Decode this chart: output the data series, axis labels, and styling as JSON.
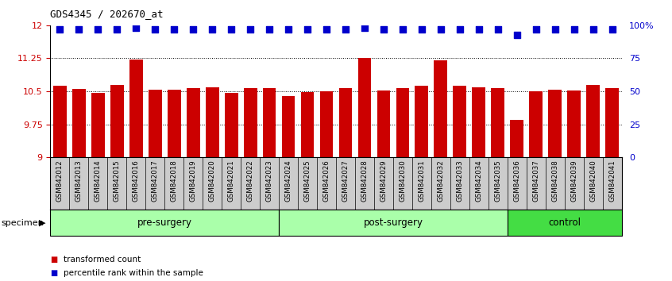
{
  "title": "GDS4345 / 202670_at",
  "samples": [
    "GSM842012",
    "GSM842013",
    "GSM842014",
    "GSM842015",
    "GSM842016",
    "GSM842017",
    "GSM842018",
    "GSM842019",
    "GSM842020",
    "GSM842021",
    "GSM842022",
    "GSM842023",
    "GSM842024",
    "GSM842025",
    "GSM842026",
    "GSM842027",
    "GSM842028",
    "GSM842029",
    "GSM842030",
    "GSM842031",
    "GSM842032",
    "GSM842033",
    "GSM842034",
    "GSM842035",
    "GSM842036",
    "GSM842037",
    "GSM842038",
    "GSM842039",
    "GSM842040",
    "GSM842041"
  ],
  "bar_values": [
    10.62,
    10.55,
    10.46,
    10.65,
    11.22,
    10.53,
    10.54,
    10.57,
    10.6,
    10.47,
    10.57,
    10.58,
    10.4,
    10.48,
    10.5,
    10.57,
    11.25,
    10.52,
    10.58,
    10.63,
    11.2,
    10.62,
    10.59,
    10.58,
    9.86,
    10.5,
    10.54,
    10.52,
    10.65,
    10.57
  ],
  "percentile_values": [
    97,
    97,
    97,
    97,
    98,
    97,
    97,
    97,
    97,
    97,
    97,
    97,
    97,
    97,
    97,
    97,
    98,
    97,
    97,
    97,
    97,
    97,
    97,
    97,
    93,
    97,
    97,
    97,
    97,
    97
  ],
  "groups": [
    {
      "label": "pre-surgery",
      "start": 0,
      "end": 12,
      "color": "#aaffaa"
    },
    {
      "label": "post-surgery",
      "start": 12,
      "end": 24,
      "color": "#aaffaa"
    },
    {
      "label": "control",
      "start": 24,
      "end": 30,
      "color": "#44dd44"
    }
  ],
  "ymin": 9.0,
  "ymax": 12.0,
  "yticks": [
    9.0,
    9.75,
    10.5,
    11.25,
    12.0
  ],
  "ytick_labels": [
    "9",
    "9.75",
    "10.5",
    "11.25",
    "12"
  ],
  "right_yticks": [
    0,
    25,
    50,
    75,
    100
  ],
  "right_ytick_labels": [
    "0",
    "25",
    "50",
    "75",
    "100%"
  ],
  "bar_color": "#CC0000",
  "dot_color": "#0000CC",
  "bar_width": 0.7,
  "dot_size": 28,
  "xlabel": "specimen",
  "tick_bg_color": "#cccccc",
  "legend_items": [
    {
      "color": "#CC0000",
      "label": "transformed count"
    },
    {
      "color": "#0000CC",
      "label": "percentile rank within the sample"
    }
  ]
}
